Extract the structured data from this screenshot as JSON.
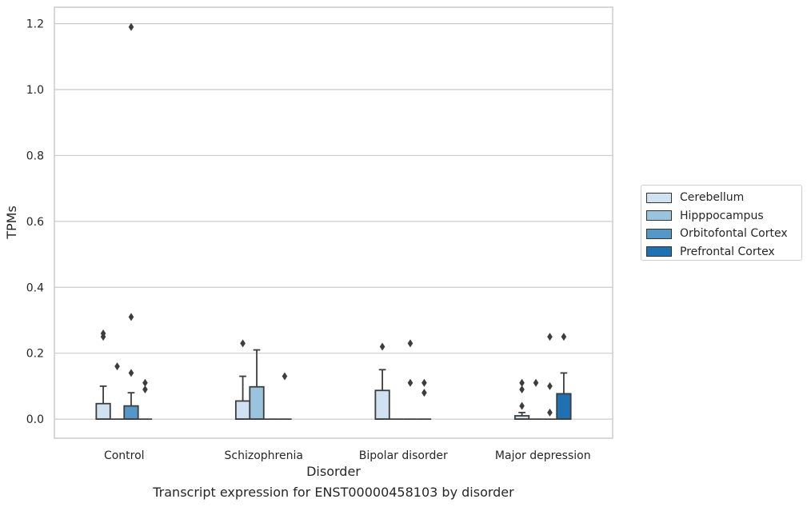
{
  "caption": "Transcript expression for ENST00000458103 by disorder",
  "chart_data": {
    "type": "box",
    "xlabel": "Disorder",
    "ylabel": "TPMs",
    "categories": [
      "Control",
      "Schizophrenia",
      "Bipolar disorder",
      "Major depression"
    ],
    "ylim": [
      -0.058,
      1.25
    ],
    "yticks": [
      "0.0",
      "0.2",
      "0.4",
      "0.6",
      "0.8",
      "1.0",
      "1.2"
    ],
    "grid": "horizontal",
    "legend_position": "right",
    "series": [
      {
        "name": "Cerebellum",
        "color": "#d0e1f2",
        "boxes": [
          {
            "q1": 0.0,
            "median": 0.0,
            "q3": 0.047,
            "whisker_low": 0.0,
            "whisker_high": 0.1,
            "outliers": [
              0.25,
              0.26
            ]
          },
          {
            "q1": 0.0,
            "median": 0.0,
            "q3": 0.055,
            "whisker_low": 0.0,
            "whisker_high": 0.13,
            "outliers": [
              0.23
            ]
          },
          {
            "q1": 0.0,
            "median": 0.0,
            "q3": 0.087,
            "whisker_low": 0.0,
            "whisker_high": 0.15,
            "outliers": [
              0.22
            ]
          },
          {
            "q1": 0.0,
            "median": 0.0,
            "q3": 0.01,
            "whisker_low": 0.0,
            "whisker_high": 0.02,
            "outliers": [
              0.04,
              0.09,
              0.11
            ]
          }
        ]
      },
      {
        "name": "Hipppocampus",
        "color": "#9ac3de",
        "boxes": [
          {
            "q1": 0.0,
            "median": 0.0,
            "q3": 0.0,
            "whisker_low": 0.0,
            "whisker_high": 0.0,
            "outliers": [
              0.16
            ]
          },
          {
            "q1": 0.0,
            "median": 0.0,
            "q3": 0.098,
            "whisker_low": 0.0,
            "whisker_high": 0.21,
            "outliers": []
          },
          {
            "q1": 0.0,
            "median": 0.0,
            "q3": 0.0,
            "whisker_low": 0.0,
            "whisker_high": 0.0,
            "outliers": []
          },
          {
            "q1": 0.0,
            "median": 0.0,
            "q3": 0.0,
            "whisker_low": 0.0,
            "whisker_high": 0.0,
            "outliers": [
              0.11
            ]
          }
        ]
      },
      {
        "name": "Orbitofontal Cortex",
        "color": "#5597c6",
        "boxes": [
          {
            "q1": 0.0,
            "median": 0.0,
            "q3": 0.04,
            "whisker_low": 0.0,
            "whisker_high": 0.08,
            "outliers": [
              0.14,
              0.31,
              1.19
            ]
          },
          {
            "q1": 0.0,
            "median": 0.0,
            "q3": 0.0,
            "whisker_low": 0.0,
            "whisker_high": 0.0,
            "outliers": []
          },
          {
            "q1": 0.0,
            "median": 0.0,
            "q3": 0.0,
            "whisker_low": 0.0,
            "whisker_high": 0.0,
            "outliers": [
              0.11,
              0.23
            ]
          },
          {
            "q1": 0.0,
            "median": 0.0,
            "q3": 0.0,
            "whisker_low": 0.0,
            "whisker_high": 0.0,
            "outliers": [
              0.02,
              0.1,
              0.25
            ]
          }
        ]
      },
      {
        "name": "Prefrontal Cortex",
        "color": "#2070b4",
        "boxes": [
          {
            "q1": 0.0,
            "median": 0.0,
            "q3": 0.0,
            "whisker_low": 0.0,
            "whisker_high": 0.0,
            "outliers": [
              0.09,
              0.11
            ]
          },
          {
            "q1": 0.0,
            "median": 0.0,
            "q3": 0.0,
            "whisker_low": 0.0,
            "whisker_high": 0.0,
            "outliers": [
              0.13
            ]
          },
          {
            "q1": 0.0,
            "median": 0.0,
            "q3": 0.0,
            "whisker_low": 0.0,
            "whisker_high": 0.0,
            "outliers": [
              0.08,
              0.11
            ]
          },
          {
            "q1": 0.0,
            "median": 0.0,
            "q3": 0.077,
            "whisker_low": 0.0,
            "whisker_high": 0.14,
            "outliers": [
              0.25
            ]
          }
        ]
      }
    ]
  }
}
